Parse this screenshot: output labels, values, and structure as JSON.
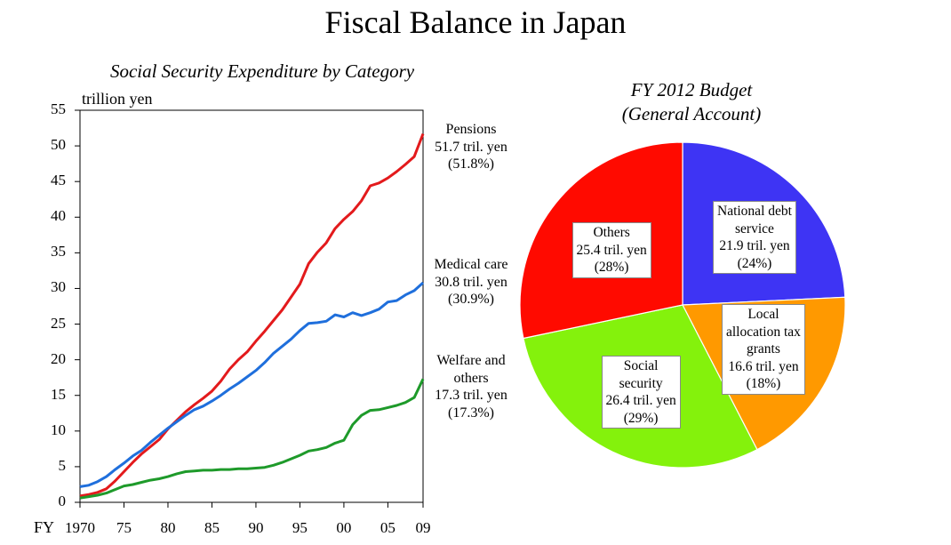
{
  "title": "Fiscal Balance in Japan",
  "chart_data": [
    {
      "type": "line",
      "title": "Social Security Expenditure by Category",
      "ylabel": "trillion yen",
      "xlabel": "FY",
      "ylim": [
        0,
        55
      ],
      "xlim": [
        1970,
        2009
      ],
      "yticks": [
        "0",
        "5",
        "10",
        "15",
        "20",
        "25",
        "30",
        "35",
        "40",
        "45",
        "50",
        "55"
      ],
      "xticks": [
        {
          "x": 1970,
          "label": "1970"
        },
        {
          "x": 1975,
          "label": "75"
        },
        {
          "x": 1980,
          "label": "80"
        },
        {
          "x": 1985,
          "label": "85"
        },
        {
          "x": 1990,
          "label": "90"
        },
        {
          "x": 1995,
          "label": "95"
        },
        {
          "x": 2000,
          "label": "00"
        },
        {
          "x": 2005,
          "label": "05"
        },
        {
          "x": 2009,
          "label": "09"
        }
      ],
      "x": [
        1970,
        1971,
        1972,
        1973,
        1974,
        1975,
        1976,
        1977,
        1978,
        1979,
        1980,
        1981,
        1982,
        1983,
        1984,
        1985,
        1986,
        1987,
        1988,
        1989,
        1990,
        1991,
        1992,
        1993,
        1994,
        1995,
        1996,
        1997,
        1998,
        1999,
        2000,
        2001,
        2002,
        2003,
        2004,
        2005,
        2006,
        2007,
        2008,
        2009
      ],
      "series": [
        {
          "key": "pensions",
          "color": "#e31a1c",
          "label": [
            "Pensions",
            "51.7 tril. yen",
            "(51.8%)"
          ],
          "values": [
            0.9,
            1.1,
            1.4,
            1.9,
            3.0,
            4.3,
            5.6,
            6.8,
            7.8,
            8.8,
            10.3,
            11.5,
            12.7,
            13.7,
            14.6,
            15.6,
            17.0,
            18.7,
            20.0,
            21.1,
            22.6,
            24.0,
            25.5,
            27.0,
            28.8,
            30.6,
            33.5,
            35.1,
            36.4,
            38.4,
            39.7,
            40.8,
            42.3,
            44.4,
            44.8,
            45.5,
            46.4,
            47.4,
            48.5,
            51.7
          ]
        },
        {
          "key": "medical",
          "color": "#1f6fdc",
          "label": [
            "Medical care",
            "30.8 tril. yen",
            "(30.9%)"
          ],
          "values": [
            2.2,
            2.4,
            2.9,
            3.6,
            4.6,
            5.5,
            6.5,
            7.3,
            8.4,
            9.4,
            10.4,
            11.3,
            12.2,
            13.0,
            13.5,
            14.2,
            15.0,
            15.9,
            16.7,
            17.6,
            18.5,
            19.6,
            20.9,
            21.9,
            22.9,
            24.1,
            25.1,
            25.2,
            25.4,
            26.3,
            26.0,
            26.6,
            26.2,
            26.6,
            27.1,
            28.1,
            28.3,
            29.1,
            29.7,
            30.8
          ]
        },
        {
          "key": "welfare",
          "color": "#1e9a2a",
          "label": [
            "Welfare and",
            "others",
            "17.3 tril. yen",
            "(17.3%)"
          ],
          "values": [
            0.6,
            0.8,
            1.0,
            1.3,
            1.8,
            2.3,
            2.5,
            2.8,
            3.1,
            3.3,
            3.6,
            4.0,
            4.3,
            4.4,
            4.5,
            4.5,
            4.6,
            4.6,
            4.7,
            4.7,
            4.8,
            4.9,
            5.2,
            5.6,
            6.1,
            6.6,
            7.2,
            7.4,
            7.7,
            8.3,
            8.7,
            10.9,
            12.2,
            12.9,
            13.0,
            13.3,
            13.6,
            14.0,
            14.7,
            17.3
          ]
        }
      ]
    },
    {
      "type": "pie",
      "title": [
        "FY 2012 Budget",
        "(General Account)"
      ],
      "slices": [
        {
          "key": "debt",
          "value": 24,
          "color": "#3e34f4",
          "label": [
            "National debt",
            "service",
            "21.9 tril. yen",
            "(24%)"
          ]
        },
        {
          "key": "local",
          "value": 18,
          "color": "#ff9900",
          "label": [
            "Local",
            "allocation tax",
            "grants",
            "16.6 tril. yen",
            "(18%)"
          ]
        },
        {
          "key": "social",
          "value": 29,
          "color": "#84f20c",
          "label": [
            "Social",
            "security",
            "26.4 tril. yen",
            "(29%)"
          ]
        },
        {
          "key": "others",
          "value": 28,
          "color": "#ff0a00",
          "label": [
            "Others",
            "25.4 tril. yen",
            "(28%)"
          ]
        }
      ]
    }
  ]
}
